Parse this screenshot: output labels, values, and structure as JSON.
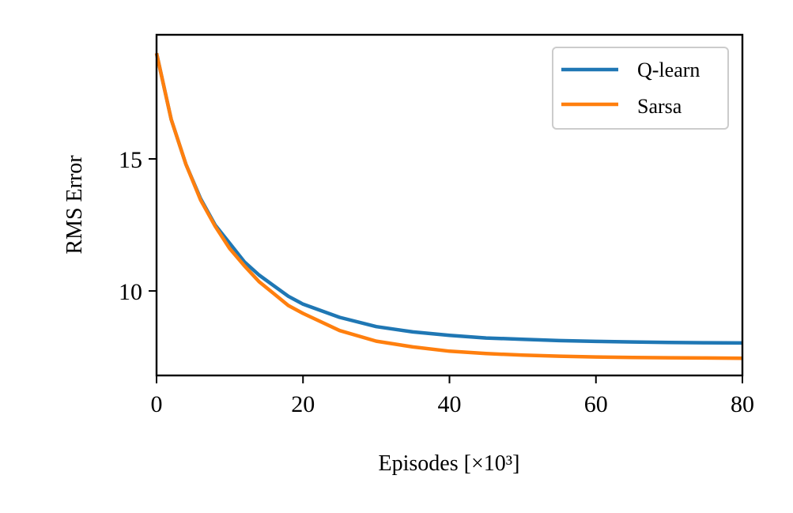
{
  "chart_data": {
    "type": "line",
    "xlabel": "Episodes [×10³]",
    "ylabel": "RMS Error",
    "xlim": [
      0,
      80
    ],
    "ylim": [
      6.8,
      19.7
    ],
    "xticks": [
      "0",
      "20",
      "40",
      "60",
      "80"
    ],
    "yticks": [
      "10",
      "15"
    ],
    "grid": false,
    "legend_position": "top-right",
    "series": [
      {
        "name": "Q-learn",
        "color": "#1f77b4",
        "x": [
          0,
          2,
          4,
          6,
          8,
          10,
          12,
          14,
          16,
          18,
          20,
          25,
          30,
          35,
          40,
          45,
          50,
          55,
          60,
          65,
          70,
          75,
          80
        ],
        "y": [
          19.0,
          16.5,
          14.8,
          13.5,
          12.5,
          11.8,
          11.1,
          10.6,
          10.2,
          9.8,
          9.5,
          9.0,
          8.65,
          8.45,
          8.32,
          8.22,
          8.17,
          8.12,
          8.09,
          8.07,
          8.05,
          8.04,
          8.03
        ]
      },
      {
        "name": "Sarsa",
        "color": "#ff7f0e",
        "x": [
          0,
          2,
          4,
          6,
          8,
          10,
          12,
          14,
          16,
          18,
          20,
          25,
          30,
          35,
          40,
          45,
          50,
          55,
          60,
          65,
          70,
          75,
          80
        ],
        "y": [
          19.0,
          16.5,
          14.8,
          13.45,
          12.45,
          11.6,
          10.95,
          10.35,
          9.9,
          9.45,
          9.15,
          8.5,
          8.1,
          7.88,
          7.72,
          7.63,
          7.57,
          7.53,
          7.5,
          7.48,
          7.47,
          7.46,
          7.45
        ]
      }
    ]
  }
}
